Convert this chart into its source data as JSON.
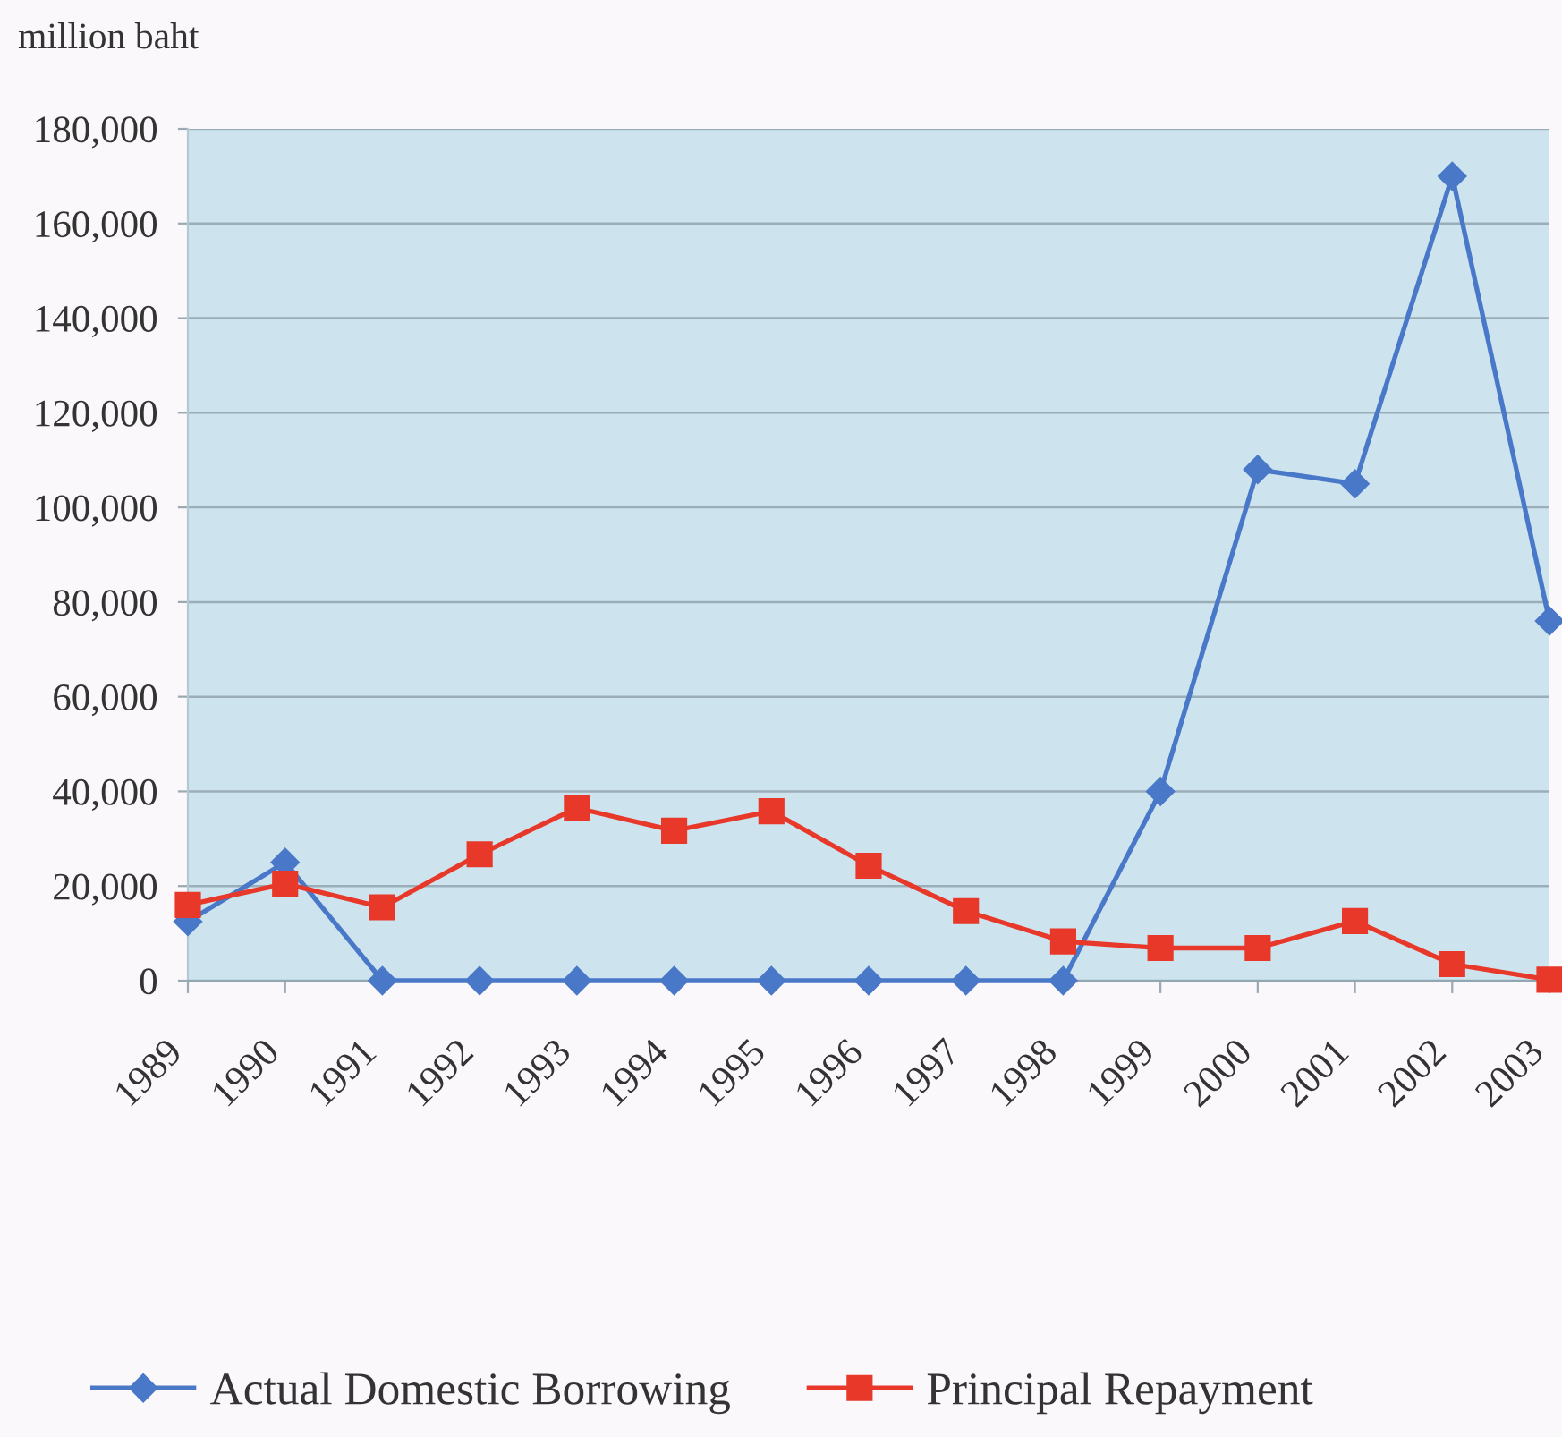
{
  "chart_data": {
    "type": "line",
    "ylabel": "million baht",
    "categories": [
      "1989",
      "1990",
      "1991",
      "1992",
      "1993",
      "1994",
      "1995",
      "1996",
      "1997",
      "1998",
      "1999",
      "2000",
      "2001",
      "2002",
      "2003"
    ],
    "series": [
      {
        "name": "Actual Domestic Borrowing",
        "color": "#4a78c8",
        "marker": "diamond",
        "values": [
          12500,
          25000,
          0,
          0,
          0,
          0,
          0,
          0,
          0,
          0,
          40000,
          108000,
          105000,
          170000,
          76000
        ]
      },
      {
        "name": "Principal Repayment",
        "color": "#e8382a",
        "marker": "square",
        "values": [
          16000,
          20500,
          15500,
          26700,
          36500,
          31700,
          35800,
          24300,
          14700,
          8300,
          6900,
          6900,
          12600,
          3500,
          200
        ]
      }
    ],
    "ylim": [
      0,
      180000
    ],
    "yticks": [
      0,
      {
        "value": 20000,
        "label": "20,000"
      },
      {
        "value": 40000,
        "label": "40,000"
      },
      {
        "value": 60000,
        "label": "60,000"
      },
      {
        "value": 80000,
        "label": "80,000"
      },
      {
        "value": 100000,
        "label": "100,000"
      },
      {
        "value": 120000,
        "label": "120,000"
      },
      {
        "value": 140000,
        "label": "140,000"
      },
      {
        "value": 160000,
        "label": "160,000"
      },
      {
        "value": 180000,
        "label": "180,000"
      }
    ],
    "grid": "y",
    "legend": "bottom",
    "line_style": "solid"
  }
}
